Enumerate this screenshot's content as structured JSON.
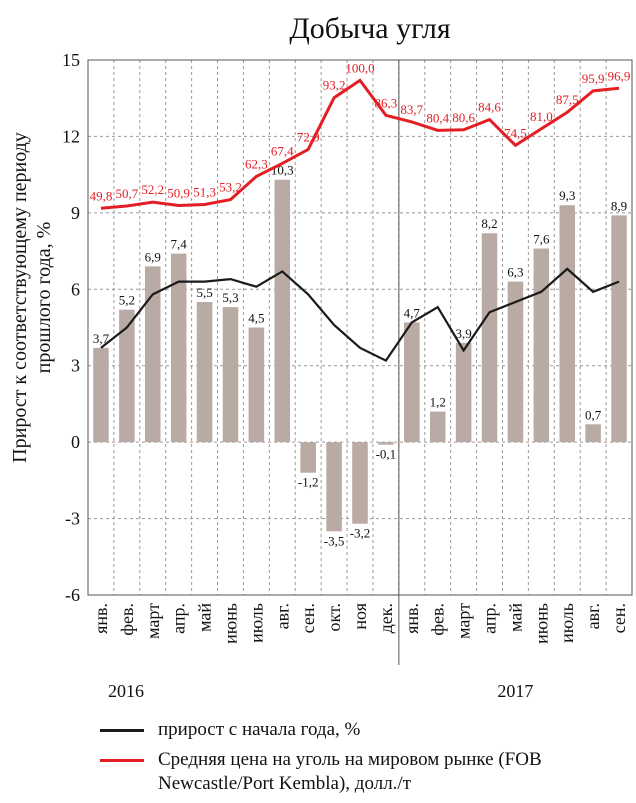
{
  "chart_data": {
    "type": "combo",
    "title": "Добыча угля",
    "ylabel": [
      "Прирост к соответствующему периоду",
      "прошлого года, %"
    ],
    "categories": [
      "янв.",
      "фев.",
      "март",
      "апр.",
      "май",
      "июнь",
      "июль",
      "авг.",
      "сен.",
      "окт.",
      "ноя",
      "дек.",
      "янв.",
      "фев.",
      "март",
      "апр.",
      "май",
      "июнь",
      "июль",
      "авг.",
      "сен."
    ],
    "x_groups": [
      "2016",
      "2017"
    ],
    "ylim": [
      -6,
      15
    ],
    "yticks": [
      -6,
      -3,
      0,
      3,
      6,
      9,
      12,
      15
    ],
    "y2lim": [
      -102,
      108
    ],
    "grid": true,
    "series": [
      {
        "type": "bar",
        "color": "#b9aba4",
        "values": [
          3.7,
          5.2,
          6.9,
          7.4,
          5.5,
          5.3,
          4.5,
          10.3,
          -1.2,
          -3.5,
          -3.2,
          -0.1,
          4.7,
          1.2,
          3.9,
          8.2,
          6.3,
          7.6,
          9.3,
          0.7,
          8.9
        ],
        "value_labels": [
          "3,7",
          "5,2",
          "6,9",
          "7,4",
          "5,5",
          "5,3",
          "4,5",
          "10,3",
          "-1,2",
          "-3,5",
          "-3,2",
          "-0,1",
          "4,7",
          "1,2",
          "3,9",
          "8,2",
          "6,3",
          "7,6",
          "9,3",
          "0,7",
          "8,9"
        ]
      },
      {
        "type": "line",
        "name": "прирост с начала года, %",
        "color": "#1a1a1a",
        "values": [
          3.7,
          4.5,
          5.8,
          6.3,
          6.3,
          6.4,
          6.1,
          6.7,
          5.8,
          4.6,
          3.7,
          3.2,
          4.7,
          5.3,
          3.6,
          5.1,
          5.5,
          5.9,
          6.8,
          5.9,
          6.3
        ]
      },
      {
        "type": "line",
        "name": "Средняя цена на уголь на мировом рынке (FOB Newcastle/Port Kembla), долл./т",
        "color": "#e31e24",
        "axis": "y2",
        "values": [
          49.8,
          50.7,
          52.2,
          50.9,
          51.3,
          53.2,
          62.3,
          67.4,
          72.9,
          93.2,
          100.0,
          86.3,
          83.7,
          80.4,
          80.6,
          84.6,
          74.5,
          81.0,
          87.5,
          95.9,
          96.9
        ],
        "value_labels": [
          "49,8",
          "50,7",
          "52,2",
          "50,9",
          "51,3",
          "53,2",
          "62,3",
          "67,4",
          "72,9",
          "93,2",
          "100,0",
          "86,3",
          "83,7",
          "80,4",
          "80,6",
          "84,6",
          "74,5",
          "81,0",
          "87,5",
          "95,9",
          "96,9"
        ]
      }
    ]
  }
}
